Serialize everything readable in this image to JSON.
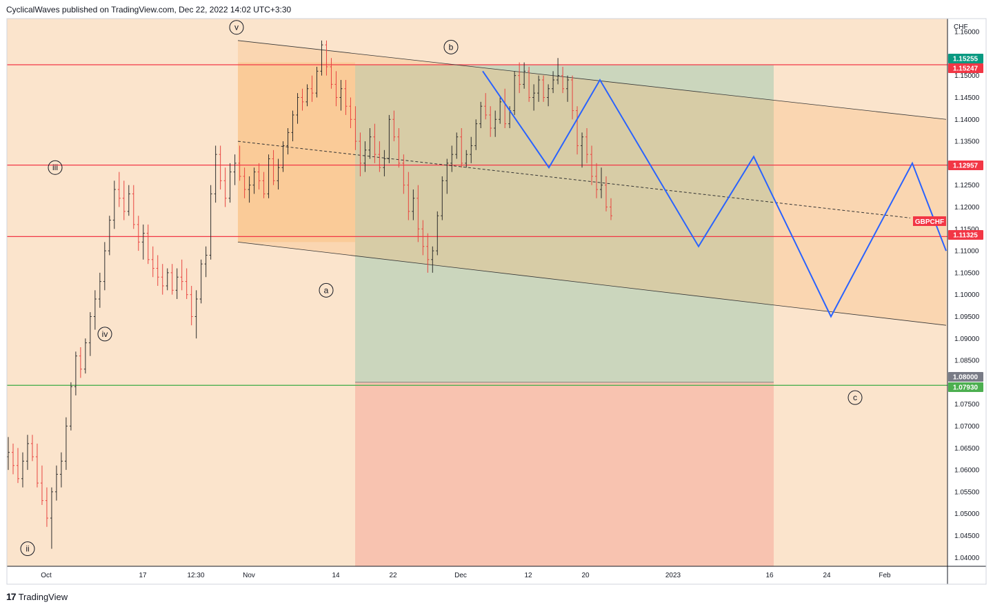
{
  "header": {
    "publisher": "CyclicalWaves published on TradingView.com, Dec 22, 2022 14:02 UTC+3:30"
  },
  "footer": {
    "brand": "TradingView",
    "logo": "17"
  },
  "chart_data": {
    "type": "candlestick",
    "symbol": "GBPCHF",
    "currency": "CHF",
    "background_color": "#fbe4cc",
    "x_ticks": [
      "Oct",
      "17",
      "12:30",
      "Nov",
      "14",
      "22",
      "Dec",
      "12",
      "20",
      "2023",
      "16",
      "24",
      "Feb"
    ],
    "y_ticks": [
      "1.16000",
      "1.15000",
      "1.14500",
      "1.14000",
      "1.13500",
      "1.12500",
      "1.12000",
      "1.11500",
      "1.11000",
      "1.10500",
      "1.10000",
      "1.09500",
      "1.09000",
      "1.08500",
      "1.07500",
      "1.07000",
      "1.06500",
      "1.06000",
      "1.05500",
      "1.05000",
      "1.04500",
      "1.04000"
    ],
    "ylim": [
      1.038,
      1.163
    ],
    "price_labels": [
      {
        "value": "1.15255",
        "color": "#089981"
      },
      {
        "value": "1.15247",
        "color": "#f23645"
      },
      {
        "value": "1.12957",
        "color": "#f23645"
      },
      {
        "value": "1.11325",
        "color": "#f23645"
      },
      {
        "value": "1.08000",
        "color": "#787b86"
      },
      {
        "value": "1.07930",
        "color": "#4caf50"
      }
    ],
    "horizontal_lines": [
      {
        "price": 1.15247,
        "color": "#f23645"
      },
      {
        "price": 1.12957,
        "color": "#f23645"
      },
      {
        "price": 1.11325,
        "color": "#f23645"
      },
      {
        "price": 1.0793,
        "color": "#4caf50"
      }
    ],
    "wave_labels": [
      {
        "text": "ii",
        "t": 30,
        "price": 1.042
      },
      {
        "text": "iii",
        "t": 70,
        "price": 1.129
      },
      {
        "text": "iv",
        "t": 142,
        "price": 1.091
      },
      {
        "text": "v",
        "t": 333,
        "price": 1.161
      },
      {
        "text": "a",
        "t": 463,
        "price": 1.101
      },
      {
        "text": "b",
        "t": 644,
        "price": 1.1565
      },
      {
        "text": "c",
        "t": 1230,
        "price": 1.0765
      }
    ],
    "ticker_label": {
      "text": "GBPCHF",
      "color": "#f23645"
    },
    "candles_ohlc": [
      [
        1.063,
        1.0675,
        1.06,
        1.064
      ],
      [
        1.064,
        1.066,
        1.059,
        1.061
      ],
      [
        1.061,
        1.065,
        1.057,
        1.058
      ],
      [
        1.058,
        1.064,
        1.056,
        1.062
      ],
      [
        1.062,
        1.068,
        1.06,
        1.066
      ],
      [
        1.066,
        1.068,
        1.062,
        1.063
      ],
      [
        1.063,
        1.066,
        1.056,
        1.057
      ],
      [
        1.057,
        1.061,
        1.052,
        1.053
      ],
      [
        1.053,
        1.056,
        1.047,
        1.049
      ],
      [
        1.049,
        1.056,
        1.042,
        1.055
      ],
      [
        1.055,
        1.061,
        1.053,
        1.059
      ],
      [
        1.059,
        1.064,
        1.056,
        1.062
      ],
      [
        1.062,
        1.072,
        1.06,
        1.07
      ],
      [
        1.07,
        1.08,
        1.069,
        1.079
      ],
      [
        1.079,
        1.087,
        1.077,
        1.086
      ],
      [
        1.086,
        1.088,
        1.081,
        1.083
      ],
      [
        1.083,
        1.09,
        1.082,
        1.089
      ],
      [
        1.089,
        1.096,
        1.086,
        1.095
      ],
      [
        1.095,
        1.101,
        1.092,
        1.099
      ],
      [
        1.099,
        1.105,
        1.097,
        1.103
      ],
      [
        1.103,
        1.112,
        1.101,
        1.11
      ],
      [
        1.11,
        1.118,
        1.109,
        1.117
      ],
      [
        1.117,
        1.126,
        1.115,
        1.124
      ],
      [
        1.124,
        1.128,
        1.12,
        1.122
      ],
      [
        1.122,
        1.126,
        1.117,
        1.119
      ],
      [
        1.119,
        1.125,
        1.118,
        1.123
      ],
      [
        1.123,
        1.125,
        1.115,
        1.116
      ],
      [
        1.116,
        1.118,
        1.11,
        1.112
      ],
      [
        1.112,
        1.116,
        1.108,
        1.114
      ],
      [
        1.114,
        1.116,
        1.107,
        1.108
      ],
      [
        1.108,
        1.111,
        1.104,
        1.106
      ],
      [
        1.106,
        1.109,
        1.102,
        1.104
      ],
      [
        1.104,
        1.107,
        1.1,
        1.102
      ],
      [
        1.102,
        1.106,
        1.101,
        1.105
      ],
      [
        1.105,
        1.107,
        1.1,
        1.101
      ],
      [
        1.101,
        1.106,
        1.099,
        1.104
      ],
      [
        1.104,
        1.108,
        1.101,
        1.103
      ],
      [
        1.103,
        1.106,
        1.099,
        1.1
      ],
      [
        1.1,
        1.102,
        1.093,
        1.095
      ],
      [
        1.095,
        1.101,
        1.09,
        1.099
      ],
      [
        1.099,
        1.108,
        1.098,
        1.107
      ],
      [
        1.107,
        1.111,
        1.104,
        1.109
      ],
      [
        1.109,
        1.125,
        1.108,
        1.123
      ],
      [
        1.123,
        1.134,
        1.121,
        1.132
      ],
      [
        1.132,
        1.134,
        1.124,
        1.126
      ],
      [
        1.126,
        1.129,
        1.12,
        1.122
      ],
      [
        1.122,
        1.13,
        1.121,
        1.128
      ],
      [
        1.128,
        1.132,
        1.125,
        1.13
      ],
      [
        1.13,
        1.134,
        1.126,
        1.127
      ],
      [
        1.127,
        1.129,
        1.122,
        1.124
      ],
      [
        1.124,
        1.127,
        1.121,
        1.125
      ],
      [
        1.125,
        1.129,
        1.123,
        1.128
      ],
      [
        1.128,
        1.13,
        1.124,
        1.126
      ],
      [
        1.126,
        1.128,
        1.122,
        1.123
      ],
      [
        1.123,
        1.132,
        1.122,
        1.131
      ],
      [
        1.131,
        1.133,
        1.125,
        1.126
      ],
      [
        1.126,
        1.131,
        1.124,
        1.129
      ],
      [
        1.129,
        1.135,
        1.128,
        1.134
      ],
      [
        1.134,
        1.138,
        1.132,
        1.137
      ],
      [
        1.137,
        1.142,
        1.135,
        1.141
      ],
      [
        1.141,
        1.146,
        1.139,
        1.145
      ],
      [
        1.145,
        1.147,
        1.142,
        1.144
      ],
      [
        1.144,
        1.148,
        1.143,
        1.147
      ],
      [
        1.147,
        1.15,
        1.144,
        1.146
      ],
      [
        1.146,
        1.152,
        1.145,
        1.151
      ],
      [
        1.151,
        1.158,
        1.15,
        1.157
      ],
      [
        1.157,
        1.158,
        1.15,
        1.152
      ],
      [
        1.152,
        1.154,
        1.147,
        1.148
      ],
      [
        1.148,
        1.151,
        1.143,
        1.145
      ],
      [
        1.145,
        1.149,
        1.142,
        1.147
      ],
      [
        1.147,
        1.149,
        1.141,
        1.143
      ],
      [
        1.143,
        1.145,
        1.138,
        1.14
      ],
      [
        1.14,
        1.143,
        1.133,
        1.135
      ],
      [
        1.135,
        1.137,
        1.127,
        1.13
      ],
      [
        1.13,
        1.135,
        1.128,
        1.133
      ],
      [
        1.133,
        1.138,
        1.131,
        1.136
      ],
      [
        1.136,
        1.139,
        1.13,
        1.132
      ],
      [
        1.132,
        1.135,
        1.128,
        1.129
      ],
      [
        1.129,
        1.133,
        1.127,
        1.131
      ],
      [
        1.131,
        1.141,
        1.13,
        1.14
      ],
      [
        1.14,
        1.142,
        1.135,
        1.136
      ],
      [
        1.136,
        1.138,
        1.129,
        1.13
      ],
      [
        1.13,
        1.132,
        1.123,
        1.125
      ],
      [
        1.125,
        1.128,
        1.117,
        1.119
      ],
      [
        1.119,
        1.124,
        1.117,
        1.122
      ],
      [
        1.122,
        1.125,
        1.112,
        1.115
      ],
      [
        1.115,
        1.117,
        1.109,
        1.111
      ],
      [
        1.111,
        1.114,
        1.105,
        1.108
      ],
      [
        1.108,
        1.111,
        1.105,
        1.11
      ],
      [
        1.11,
        1.119,
        1.109,
        1.118
      ],
      [
        1.118,
        1.127,
        1.117,
        1.126
      ],
      [
        1.126,
        1.131,
        1.123,
        1.13
      ],
      [
        1.13,
        1.134,
        1.128,
        1.132
      ],
      [
        1.132,
        1.137,
        1.131,
        1.136
      ],
      [
        1.136,
        1.138,
        1.129,
        1.13
      ],
      [
        1.13,
        1.133,
        1.129,
        1.132
      ],
      [
        1.132,
        1.136,
        1.13,
        1.134
      ],
      [
        1.134,
        1.14,
        1.133,
        1.139
      ],
      [
        1.139,
        1.144,
        1.138,
        1.143
      ],
      [
        1.143,
        1.146,
        1.14,
        1.141
      ],
      [
        1.141,
        1.143,
        1.136,
        1.138
      ],
      [
        1.138,
        1.142,
        1.136,
        1.14
      ],
      [
        1.14,
        1.145,
        1.139,
        1.144
      ],
      [
        1.144,
        1.147,
        1.138,
        1.139
      ],
      [
        1.139,
        1.143,
        1.138,
        1.142
      ],
      [
        1.142,
        1.151,
        1.141,
        1.15
      ],
      [
        1.15,
        1.153,
        1.146,
        1.148
      ],
      [
        1.148,
        1.153,
        1.147,
        1.151
      ],
      [
        1.151,
        1.152,
        1.144,
        1.145
      ],
      [
        1.145,
        1.148,
        1.142,
        1.146
      ],
      [
        1.146,
        1.15,
        1.144,
        1.149
      ],
      [
        1.149,
        1.15,
        1.144,
        1.145
      ],
      [
        1.145,
        1.148,
        1.143,
        1.147
      ],
      [
        1.147,
        1.151,
        1.146,
        1.149
      ],
      [
        1.149,
        1.154,
        1.148,
        1.15
      ],
      [
        1.15,
        1.152,
        1.146,
        1.147
      ],
      [
        1.147,
        1.15,
        1.144,
        1.149
      ],
      [
        1.149,
        1.15,
        1.14,
        1.142
      ],
      [
        1.142,
        1.143,
        1.132,
        1.134
      ],
      [
        1.134,
        1.137,
        1.129,
        1.136
      ],
      [
        1.136,
        1.138,
        1.13,
        1.132
      ],
      [
        1.132,
        1.134,
        1.125,
        1.127
      ],
      [
        1.127,
        1.13,
        1.122,
        1.124
      ],
      [
        1.124,
        1.129,
        1.122,
        1.125
      ],
      [
        1.125,
        1.127,
        1.119,
        1.12
      ],
      [
        1.12,
        1.122,
        1.117,
        1.118
      ]
    ],
    "projection_points": [
      [
        700,
        1.151
      ],
      [
        796,
        1.129
      ],
      [
        870,
        1.149
      ],
      [
        1013,
        1.111
      ],
      [
        1093,
        1.1315
      ],
      [
        1205,
        1.095
      ],
      [
        1323,
        1.13
      ],
      [
        1372,
        1.11
      ]
    ],
    "channel": {
      "upper": [
        [
          345,
          1.158
        ],
        [
          1372,
          1.14
        ]
      ],
      "lower": [
        [
          345,
          1.112
        ],
        [
          1372,
          1.093
        ]
      ],
      "mid": [
        [
          345,
          1.135
        ],
        [
          1320,
          1.1175
        ]
      ]
    },
    "zones": {
      "orange_box": {
        "t0": 345,
        "t1": 515,
        "p_top": 1.153,
        "p_bot": 1.112
      },
      "green_box": {
        "t0": 515,
        "t1": 1122,
        "p_top": 1.1525,
        "p_bot": 1.08
      },
      "red_box": {
        "t0": 515,
        "t1": 1122,
        "p_top": 1.08,
        "p_bot": 1.038
      },
      "future_band": {
        "t0": 1122,
        "t1": 1372,
        "p_top": 1.14,
        "p_bot": 1.093
      }
    }
  }
}
